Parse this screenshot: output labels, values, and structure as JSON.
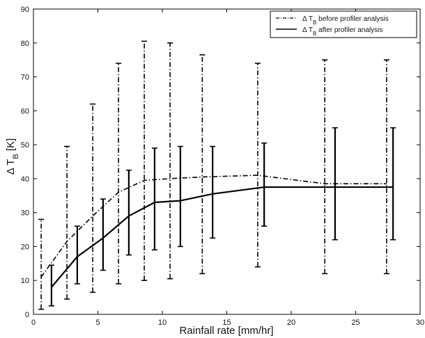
{
  "chart_data": {
    "type": "line",
    "xlabel": "Rainfall rate [mm/hr]",
    "ylabel": "Δ T_B [K]",
    "xlim": [
      0,
      30
    ],
    "ylim": [
      0,
      90
    ],
    "x_ticks": [
      0,
      5,
      10,
      15,
      20,
      25,
      30
    ],
    "y_ticks": [
      0,
      10,
      20,
      30,
      40,
      50,
      60,
      70,
      80,
      90
    ],
    "grid": false,
    "legend_position": "top-right",
    "series": [
      {
        "name": "Δ T_B before profiler analysis",
        "line_style": "dash-dot",
        "color": "#000000",
        "x": [
          0.6,
          2.6,
          4.6,
          6.6,
          8.6,
          10.6,
          13.1,
          17.4,
          22.6,
          27.4
        ],
        "y": [
          11,
          21.5,
          29,
          36,
          39.5,
          40,
          40.5,
          41,
          38.5,
          38.5
        ],
        "error_lower": [
          1.5,
          4.5,
          6.5,
          9,
          10,
          10.5,
          12,
          14,
          12,
          12
        ],
        "error_upper": [
          28,
          49.5,
          62,
          74,
          80.5,
          80,
          76.5,
          74,
          75,
          75
        ]
      },
      {
        "name": "Δ T_B after profiler analysis",
        "line_style": "solid",
        "color": "#000000",
        "x": [
          1.4,
          3.4,
          5.4,
          7.4,
          9.4,
          11.4,
          13.9,
          17.9,
          23.4,
          27.9
        ],
        "y": [
          8,
          17,
          22.5,
          29,
          33,
          33.5,
          35.5,
          37.5,
          37.5,
          37.5
        ],
        "error_lower": [
          2.5,
          9,
          13,
          17.5,
          19,
          20,
          22.5,
          26,
          22,
          22
        ],
        "error_upper": [
          14.5,
          26,
          34,
          42.5,
          49,
          49.5,
          49.5,
          50.5,
          55,
          55
        ]
      }
    ]
  }
}
